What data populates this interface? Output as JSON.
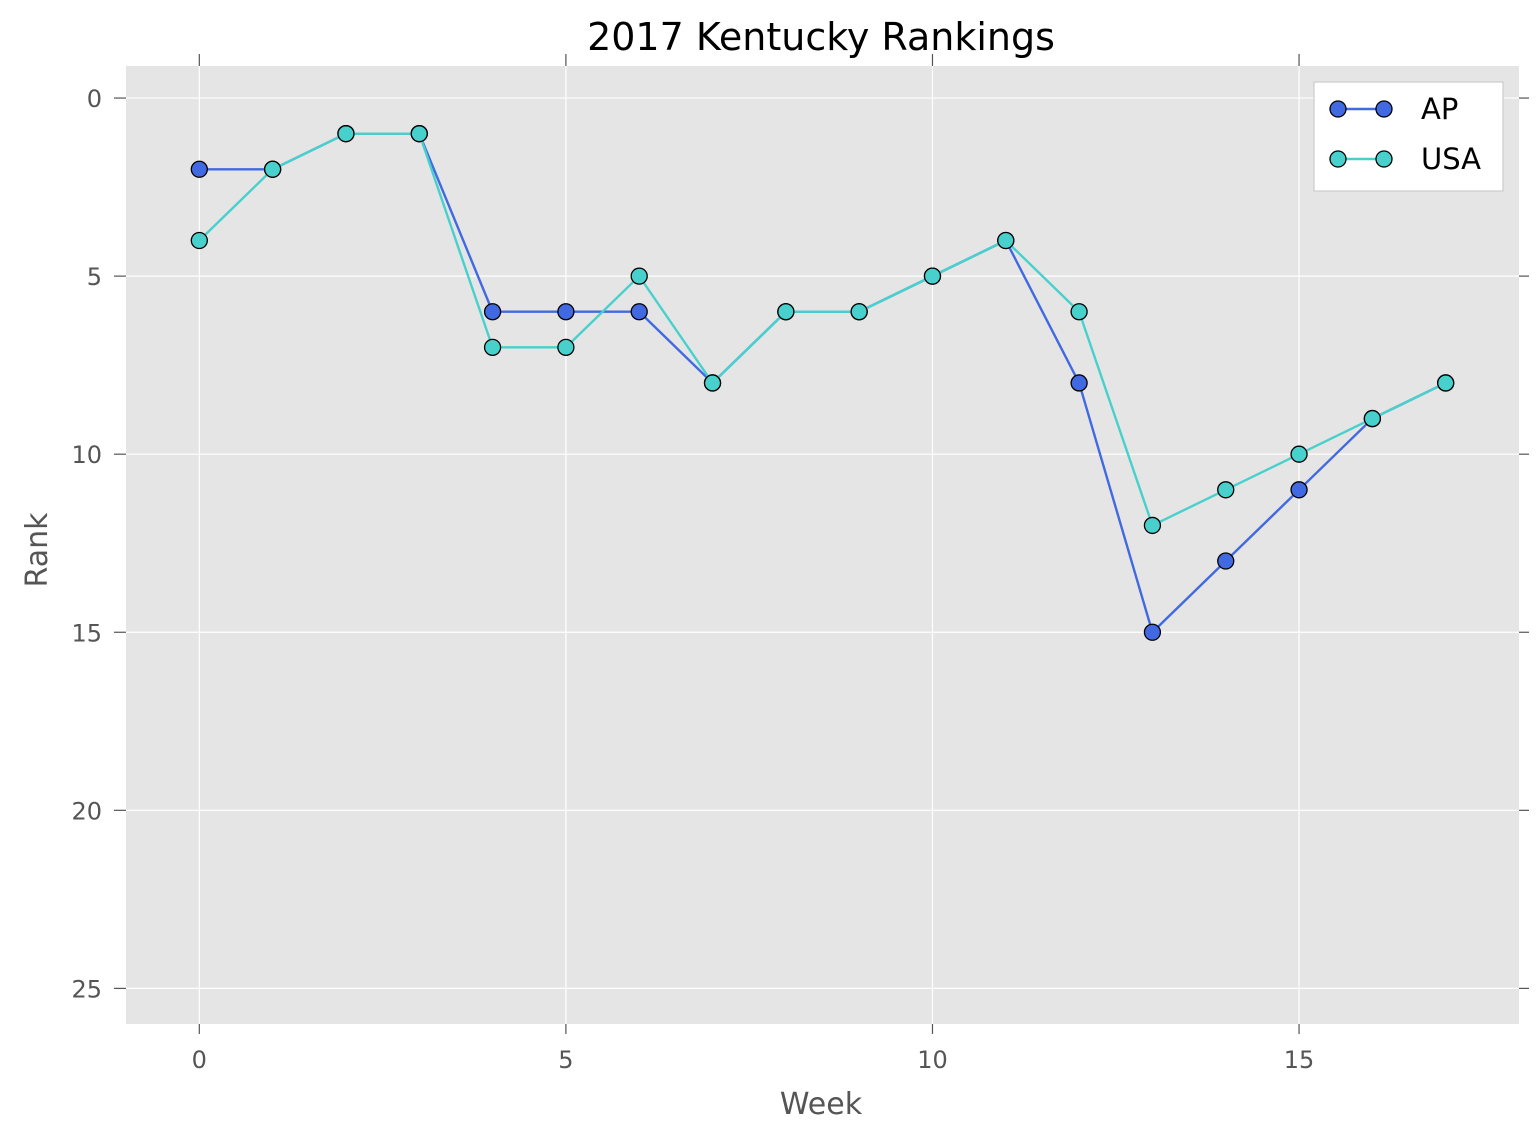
{
  "chart_data": {
    "type": "line",
    "title": "2017 Kentucky Rankings",
    "xlabel": "Week",
    "ylabel": "Rank",
    "xlim": [
      -1,
      18
    ],
    "ylim": [
      -0.9,
      26
    ],
    "y_inverted": true,
    "xticks": [
      0,
      5,
      10,
      15
    ],
    "yticks": [
      0,
      5,
      10,
      15,
      20,
      25
    ],
    "grid": true,
    "background": "#e5e5e5",
    "legend_position": "top-right",
    "x": [
      0,
      1,
      2,
      3,
      4,
      5,
      6,
      7,
      8,
      9,
      10,
      11,
      12,
      13,
      14,
      15,
      16,
      17
    ],
    "series": [
      {
        "name": "AP",
        "color": "#4169e1",
        "values": [
          2,
          2,
          1,
          1,
          6,
          6,
          6,
          8,
          6,
          6,
          5,
          4,
          8,
          15,
          13,
          11,
          9,
          8
        ]
      },
      {
        "name": "USA",
        "color": "#48d1cc",
        "values": [
          4,
          2,
          1,
          1,
          7,
          7,
          5,
          8,
          6,
          6,
          5,
          4,
          6,
          12,
          11,
          10,
          9,
          8
        ]
      }
    ]
  }
}
